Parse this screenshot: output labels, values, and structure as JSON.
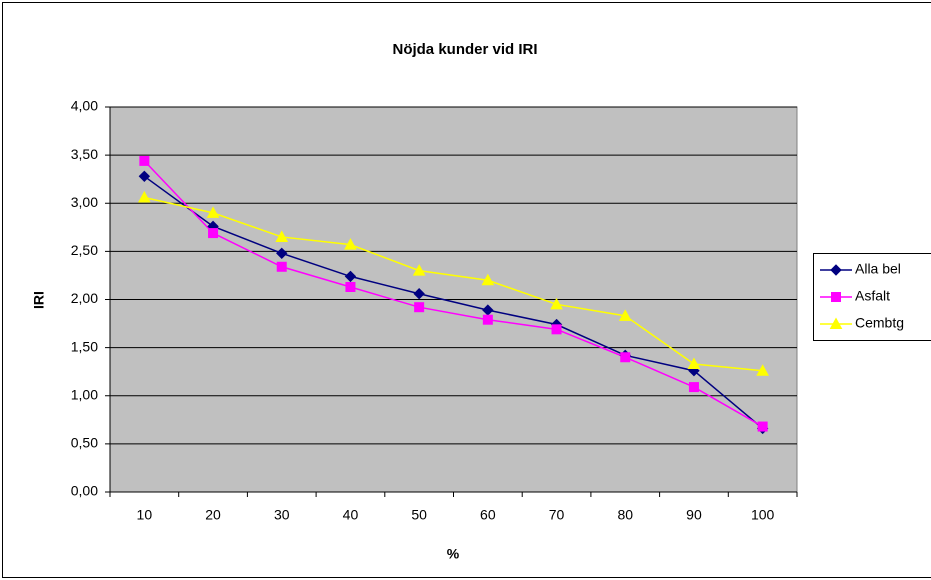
{
  "chart_data": {
    "type": "line",
    "title": "Nöjda kunder vid IRI",
    "xlabel": "%",
    "ylabel": "IRI",
    "categories": [
      "10",
      "20",
      "30",
      "40",
      "50",
      "60",
      "70",
      "80",
      "90",
      "100"
    ],
    "series": [
      {
        "name": "Alla bel",
        "color": "#000080",
        "marker": "diamond",
        "values": [
          3.28,
          2.76,
          2.48,
          2.24,
          2.06,
          1.89,
          1.74,
          1.42,
          1.26,
          0.66
        ]
      },
      {
        "name": "Asfalt",
        "color": "#FF00FF",
        "marker": "square",
        "values": [
          3.44,
          2.69,
          2.34,
          2.13,
          1.92,
          1.79,
          1.69,
          1.4,
          1.09,
          0.68
        ]
      },
      {
        "name": "Cembtg",
        "color": "#FFFF00",
        "marker": "triangle",
        "values": [
          3.06,
          2.9,
          2.65,
          2.57,
          2.3,
          2.2,
          1.95,
          1.83,
          1.33,
          1.26
        ]
      }
    ],
    "ylim": [
      0,
      4
    ],
    "yticks": [
      {
        "value": 0,
        "label": "0,00"
      },
      {
        "value": 0.5,
        "label": "0,50"
      },
      {
        "value": 1,
        "label": "1,00"
      },
      {
        "value": 1.5,
        "label": "1,50"
      },
      {
        "value": 2,
        "label": "2,00"
      },
      {
        "value": 2.5,
        "label": "2,50"
      },
      {
        "value": 3,
        "label": "3,00"
      },
      {
        "value": 3.5,
        "label": "3,50"
      },
      {
        "value": 4,
        "label": "4,00"
      }
    ],
    "grid": true,
    "legend": "right"
  }
}
